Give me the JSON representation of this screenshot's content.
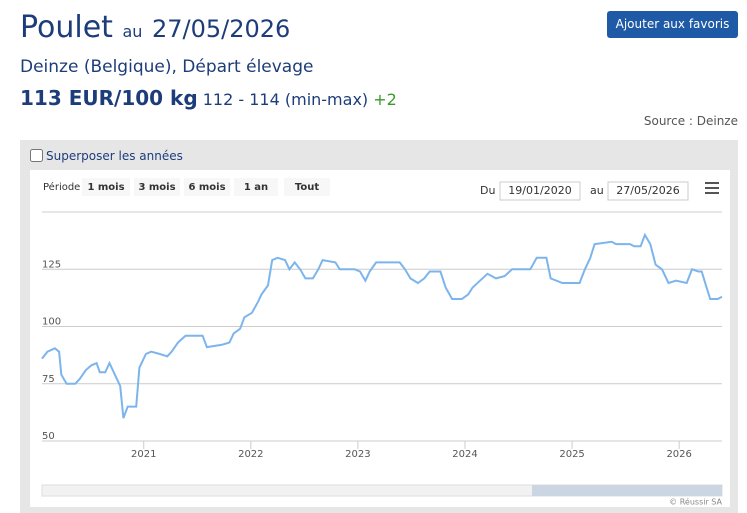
{
  "header": {
    "title": "Poulet",
    "date_prefix": "au",
    "date": "27/05/2026",
    "favorite_button": "Ajouter aux favoris",
    "market": "Deinze (Belgique), Départ élevage",
    "price": "113 EUR/100 kg",
    "range": "112 - 114 (min-max)",
    "change": "+2",
    "source": "Source : Deinze"
  },
  "controls": {
    "overlay_years": "Superposer les années",
    "period_label": "Période",
    "periods": [
      "1 mois",
      "3 mois",
      "6 mois",
      "1 an",
      "Tout"
    ],
    "from_label": "Du",
    "from_date": "19/01/2020",
    "to_label": "au",
    "to_date": "27/05/2026",
    "credit": "© Réussir SA"
  },
  "chart_data": {
    "type": "line",
    "color": "#7cb5ec",
    "grid": true,
    "x": [
      2020.05,
      2020.1,
      2020.17,
      2020.21,
      2020.23,
      2020.28,
      2020.36,
      2020.4,
      2020.46,
      2020.51,
      2020.56,
      2020.59,
      2020.64,
      2020.68,
      2020.73,
      2020.78,
      2020.81,
      2020.85,
      2020.93,
      2020.96,
      2021.02,
      2021.07,
      2021.15,
      2021.22,
      2021.26,
      2021.32,
      2021.39,
      2021.55,
      2021.59,
      2021.73,
      2021.8,
      2021.84,
      2021.9,
      2021.94,
      2022.01,
      2022.07,
      2022.1,
      2022.16,
      2022.2,
      2022.25,
      2022.32,
      2022.36,
      2022.41,
      2022.46,
      2022.51,
      2022.58,
      2022.63,
      2022.67,
      2022.79,
      2022.83,
      2022.93,
      2022.97,
      2023.02,
      2023.07,
      2023.11,
      2023.17,
      2023.39,
      2023.44,
      2023.49,
      2023.56,
      2023.62,
      2023.67,
      2023.77,
      2023.82,
      2023.88,
      2023.97,
      2024.03,
      2024.07,
      2024.14,
      2024.21,
      2024.29,
      2024.37,
      2024.44,
      2024.56,
      2024.61,
      2024.67,
      2024.76,
      2024.8,
      2024.91,
      2025.07,
      2025.12,
      2025.17,
      2025.21,
      2025.37,
      2025.41,
      2025.54,
      2025.58,
      2025.64,
      2025.68,
      2025.73,
      2025.78,
      2025.84,
      2025.9,
      2025.97,
      2026.07,
      2026.12,
      2026.18,
      2026.21,
      2026.25,
      2026.29,
      2026.36,
      2026.4
    ],
    "values": [
      86,
      89,
      90.5,
      89,
      79,
      75,
      75,
      77,
      81,
      83,
      84,
      80,
      80,
      84,
      79,
      74,
      60,
      65,
      65,
      82,
      88,
      89,
      88,
      87,
      89,
      93,
      96,
      96,
      91,
      92,
      93,
      97,
      99,
      104,
      106,
      111,
      114,
      118,
      129,
      130,
      129,
      125,
      128,
      125,
      121,
      121,
      125,
      129,
      128,
      125,
      125,
      125,
      124,
      120,
      124,
      128,
      128,
      125,
      121,
      119,
      121,
      124,
      124,
      117,
      112,
      112,
      114,
      117,
      120,
      123,
      121,
      122,
      125,
      125,
      125,
      130,
      130,
      121,
      119,
      119,
      125,
      130,
      136,
      137,
      136,
      136,
      135,
      135,
      140,
      136,
      127,
      125,
      119,
      120,
      119,
      125,
      124,
      124,
      118,
      112,
      112,
      113
    ],
    "xlim": [
      2020.05,
      2026.4
    ],
    "xticks": [
      2021,
      2022,
      2023,
      2024,
      2025,
      2026
    ],
    "ylim": [
      50,
      150
    ],
    "yticks": [
      50,
      75,
      100,
      125
    ]
  }
}
